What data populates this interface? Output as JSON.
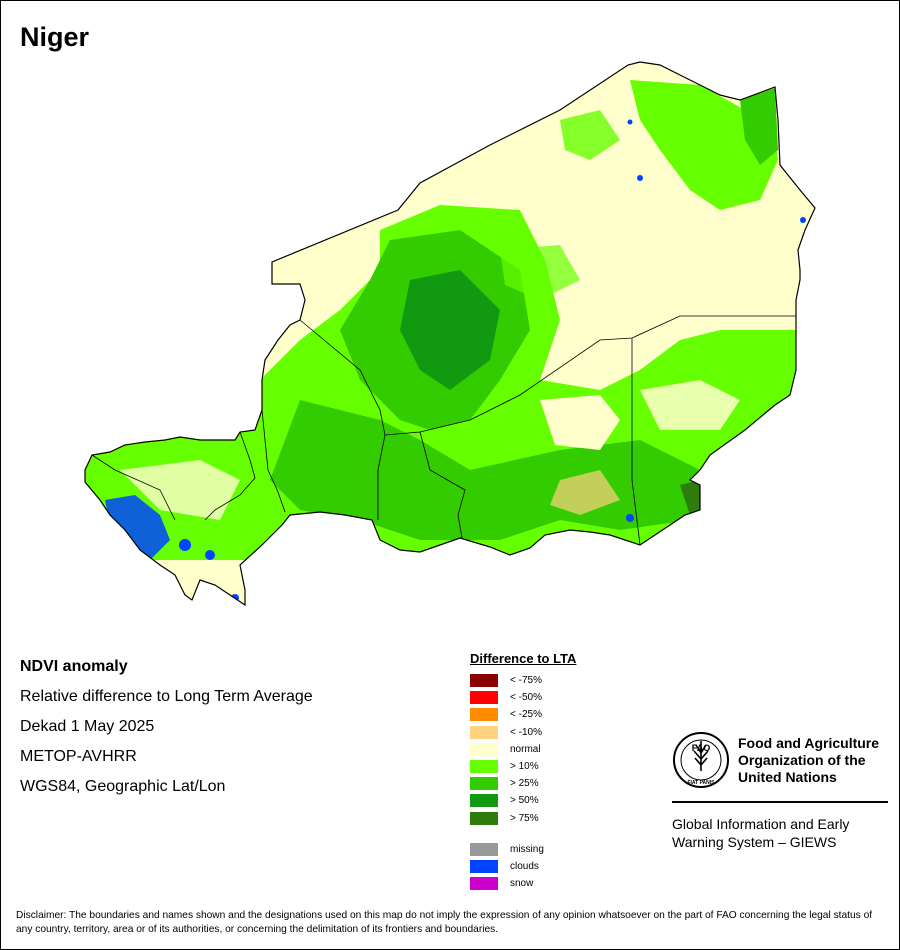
{
  "title": "Niger",
  "info": {
    "product": "NDVI anomaly",
    "description": "Relative difference to Long Term Average",
    "period": "Dekad 1 May 2025",
    "sensor": "METOP-AVHRR",
    "projection": "WGS84, Geographic Lat/Lon"
  },
  "legend": {
    "title": "Difference to LTA",
    "items": [
      {
        "label": "< -75%",
        "color": "#8b0000"
      },
      {
        "label": "< -50%",
        "color": "#ff0000"
      },
      {
        "label": "< -25%",
        "color": "#ff8c00"
      },
      {
        "label": "< -10%",
        "color": "#ffd27f"
      },
      {
        "label": "normal",
        "color": "#ffffcc"
      },
      {
        "label": "> 10%",
        "color": "#66ff00"
      },
      {
        "label": "> 25%",
        "color": "#33cc00"
      },
      {
        "label": "> 50%",
        "color": "#119911"
      },
      {
        "label": "> 75%",
        "color": "#2e7d0c"
      }
    ],
    "extra_items": [
      {
        "label": "missing",
        "color": "#999999"
      },
      {
        "label": "clouds",
        "color": "#0044ff"
      },
      {
        "label": "snow",
        "color": "#cc00cc"
      }
    ]
  },
  "fao": {
    "name_line1": "Food and Agriculture",
    "name_line2": "Organization of the",
    "name_line3": "United Nations",
    "logo_text": "FAO",
    "logo_motto": "FIAT PANIS",
    "giews_line1": "Global Information and Early",
    "giews_line2": "Warning System – GIEWS"
  },
  "disclaimer": "Disclaimer: The boundaries and names shown and the designations used on this map do not imply the expression of any opinion whatsoever on the part of FAO concerning the legal status of any country, territory, area or of its authorities, or concerning the delimitation of its frontiers and boundaries.",
  "colors": {
    "normal": "#ffffcc",
    "green_10": "#66ff00",
    "green_25": "#33cc00",
    "green_50": "#119911",
    "green_75": "#2e7d0c",
    "clouds": "#0044ff",
    "border": "#000000"
  }
}
